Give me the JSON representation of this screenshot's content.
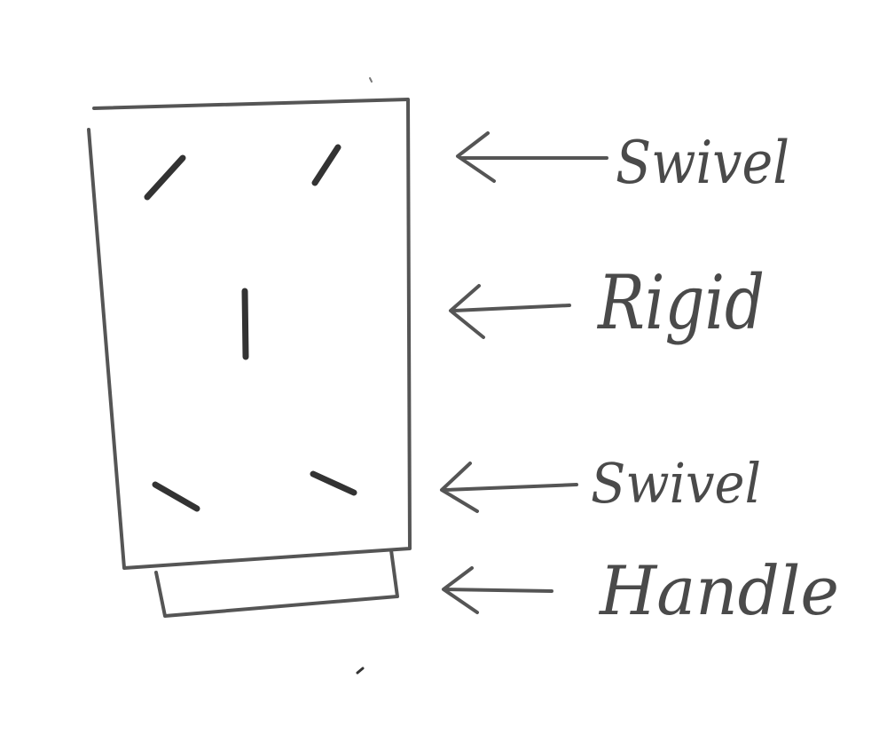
{
  "diagram": {
    "ink_color": "#4a4a4a",
    "background_color": "#ffffff",
    "components": [
      {
        "id": "top-wheels",
        "label": "Swivel",
        "wheel_type": "swivel"
      },
      {
        "id": "center-wheel",
        "label": "Rigid",
        "wheel_type": "rigid"
      },
      {
        "id": "bottom-wheels",
        "label": "Swivel",
        "wheel_type": "swivel"
      },
      {
        "id": "handle",
        "label": "Handle",
        "wheel_type": "none"
      }
    ]
  }
}
